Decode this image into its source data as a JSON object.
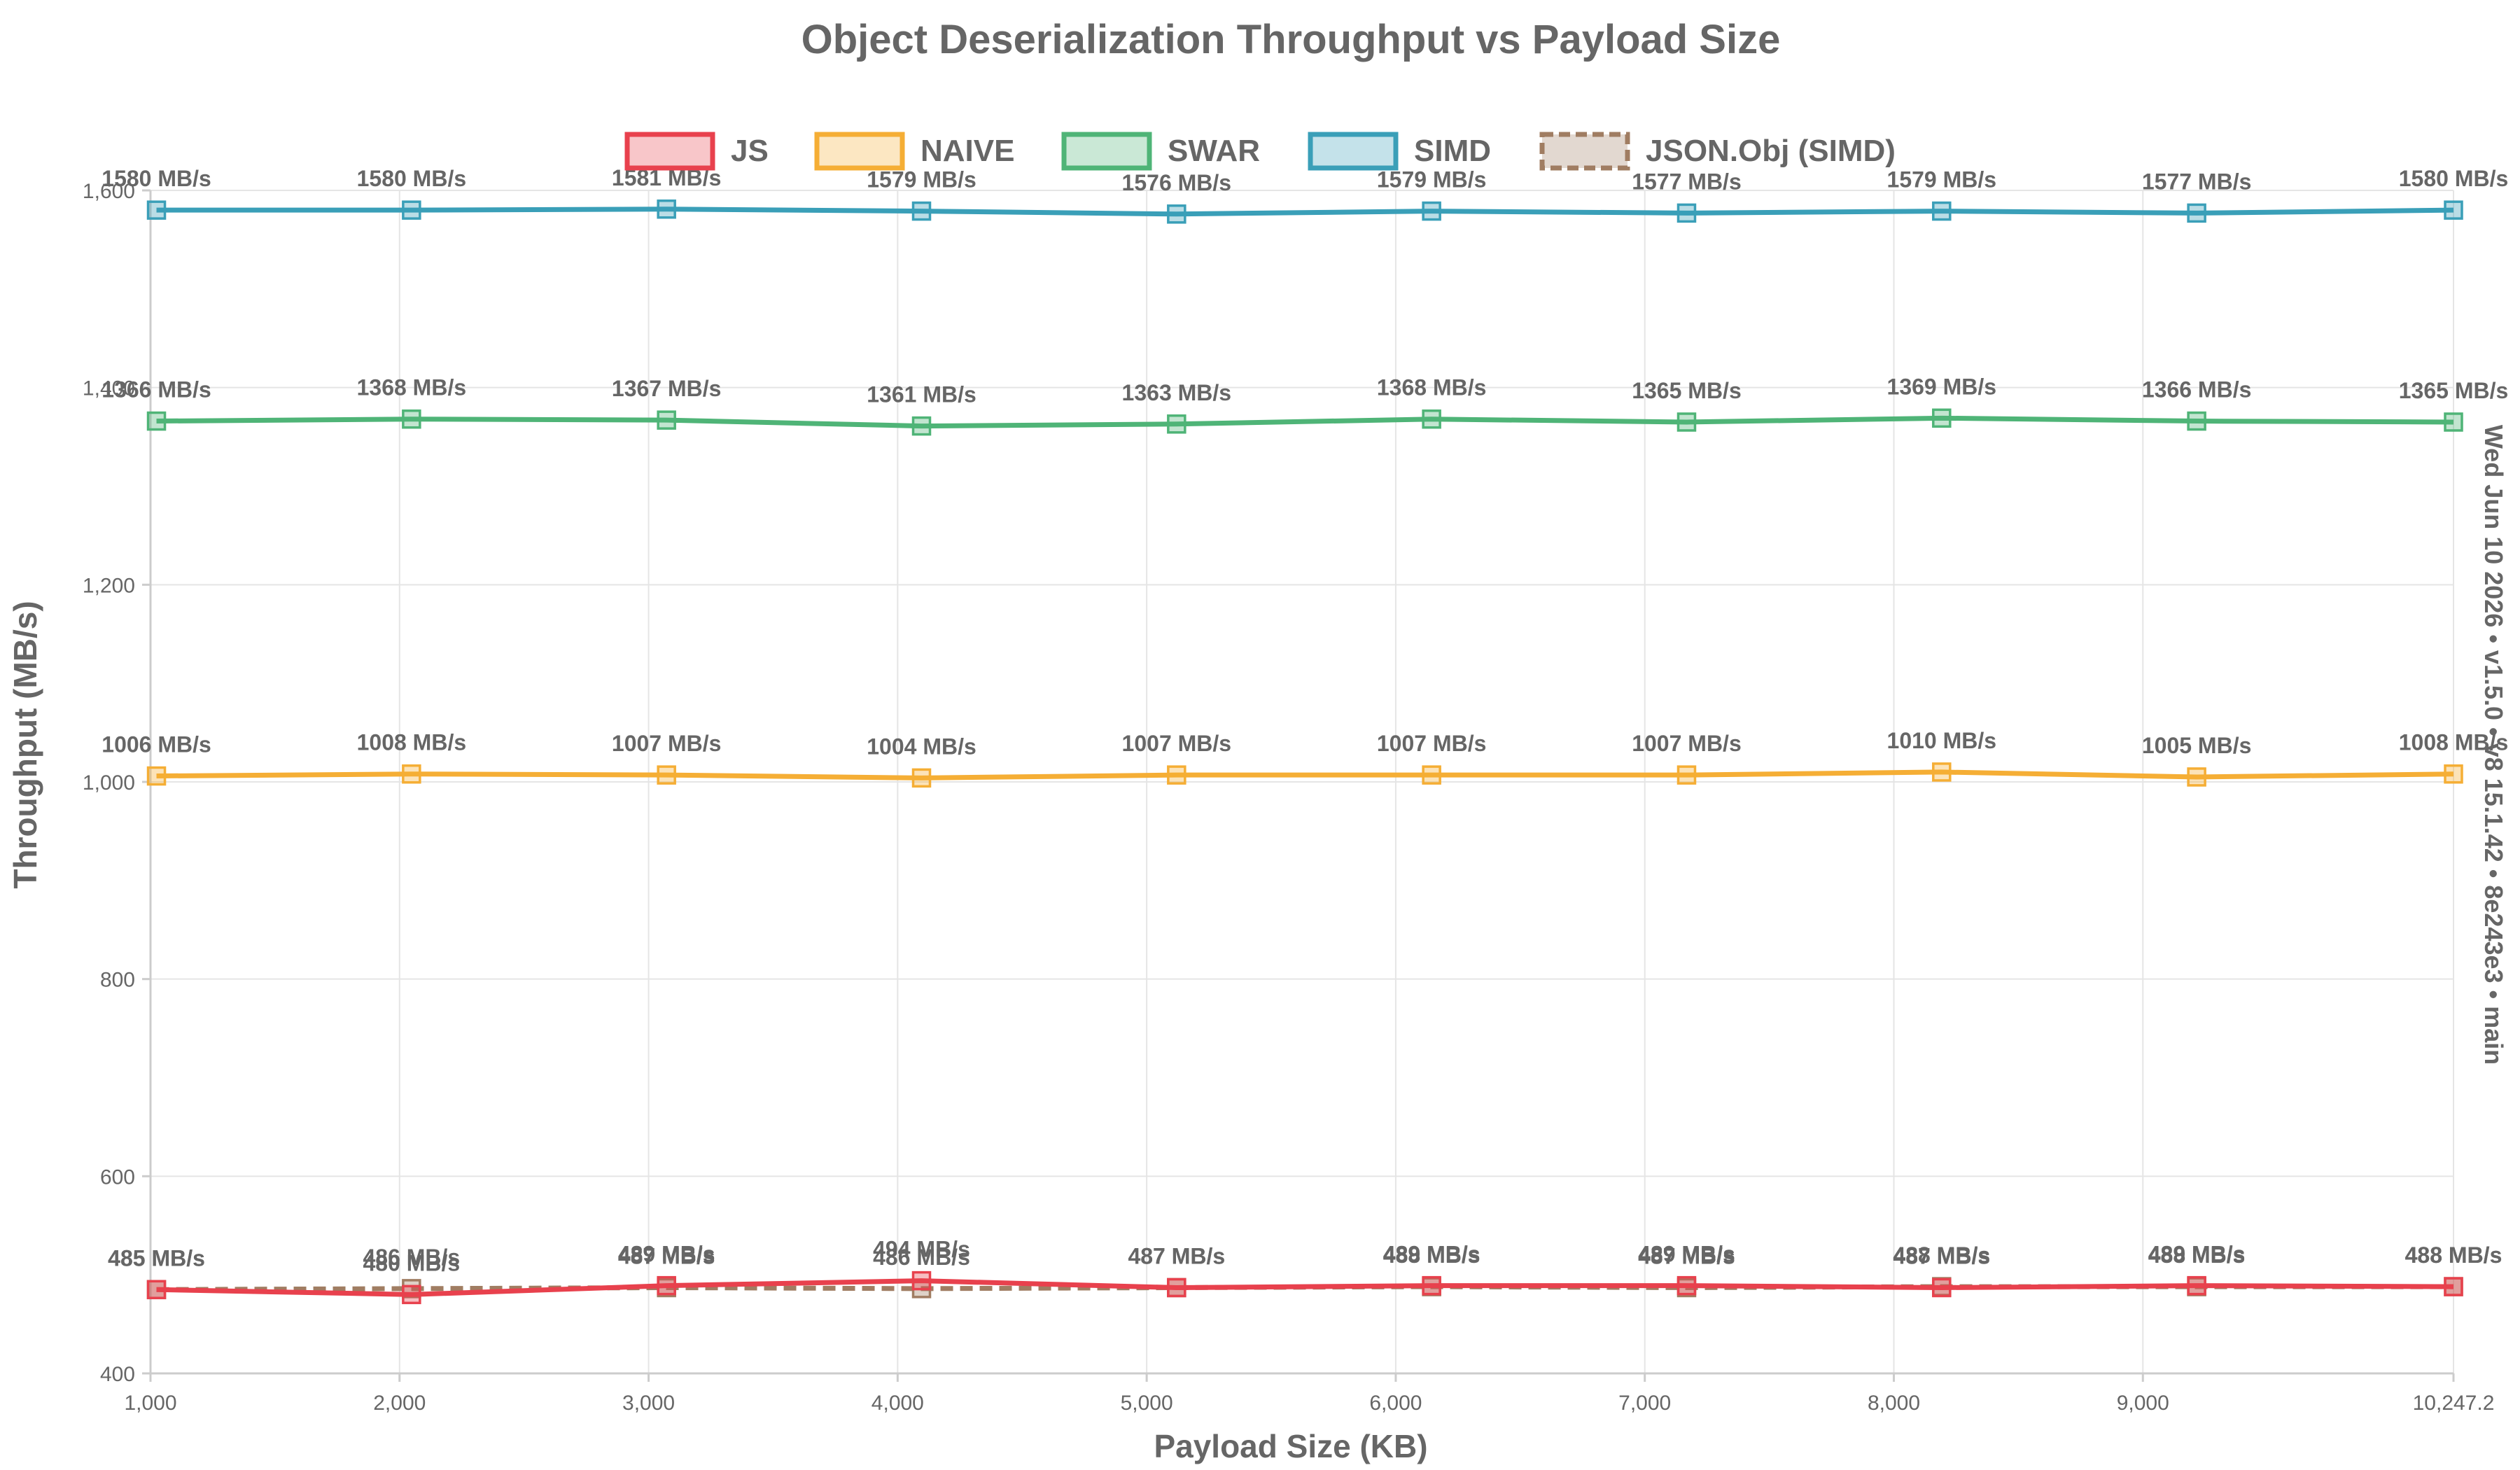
{
  "colors": {
    "JS": "#e8414d",
    "NAIVE": "#f5ae35",
    "SWAR": "#4fb477",
    "SIMD": "#3a9fb8",
    "JSON.Obj (SIMD)": "#a07d62"
  },
  "side_note": "Wed Jun 10 2026 • v1.5.0 • v8 15.1.42 • 8e243e3 • main",
  "chart_data": {
    "type": "line",
    "title": "Object Deserialization Throughput vs Payload Size",
    "xlabel": "Payload Size (KB)",
    "ylabel": "Throughput (MB/s)",
    "xlim": [
      1000,
      10247.2
    ],
    "ylim": [
      400,
      1600
    ],
    "x_ticks": [
      1000,
      2000,
      3000,
      4000,
      5000,
      6000,
      7000,
      8000,
      9000,
      10247.2
    ],
    "x_tick_labels": [
      "1,000",
      "2,000",
      "3,000",
      "4,000",
      "5,000",
      "6,000",
      "7,000",
      "8,000",
      "9,000",
      "10,247.2"
    ],
    "y_ticks": [
      400,
      600,
      800,
      1000,
      1200,
      1400,
      1600
    ],
    "y_tick_labels": [
      "400",
      "600",
      "800",
      "1,000",
      "1,200",
      "1,400",
      "1,600"
    ],
    "grid": true,
    "legend_position": "top",
    "label_suffix": " MB/s",
    "x": [
      1024,
      2048,
      3072,
      4096,
      5120,
      6144,
      7168,
      8192,
      9216,
      10247.2
    ],
    "series": [
      {
        "name": "JS",
        "dashed": false,
        "values": [
          485,
          480,
          489,
          494,
          487,
          489,
          489,
          487,
          489,
          488
        ]
      },
      {
        "name": "NAIVE",
        "dashed": false,
        "values": [
          1006,
          1008,
          1007,
          1004,
          1007,
          1007,
          1007,
          1010,
          1005,
          1008
        ]
      },
      {
        "name": "SWAR",
        "dashed": false,
        "values": [
          1366,
          1368,
          1367,
          1361,
          1363,
          1368,
          1365,
          1369,
          1366,
          1365
        ]
      },
      {
        "name": "SIMD",
        "dashed": false,
        "values": [
          1580,
          1580,
          1581,
          1579,
          1576,
          1579,
          1577,
          1579,
          1577,
          1580
        ]
      },
      {
        "name": "JSON.Obj (SIMD)",
        "dashed": true,
        "values": [
          485,
          486,
          487,
          486,
          487,
          488,
          487,
          488,
          488,
          488
        ]
      }
    ]
  }
}
